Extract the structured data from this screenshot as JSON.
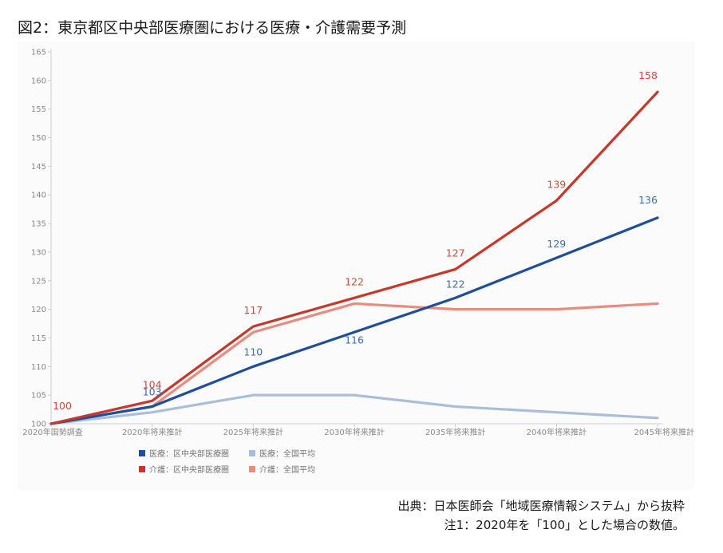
{
  "title": "図2：東京都区中央部医療圏における医療・介護需要予測",
  "source": {
    "line1": "出典：日本医師会「地域医療情報システム」から抜粋",
    "line2": "注1：2020年を「100」とした場合の数値。"
  },
  "chart_data": {
    "type": "line",
    "categories": [
      "2020年国勢調査",
      "2020年将来推計",
      "2025年将来推計",
      "2030年将来推計",
      "2035年将来推計",
      "2040年将来推計",
      "2045年将来推計"
    ],
    "ylim": [
      100,
      165
    ],
    "yticks": [
      100,
      105,
      110,
      115,
      120,
      125,
      130,
      135,
      140,
      145,
      150,
      155,
      160,
      165
    ],
    "grid": false,
    "legend_position": "bottom",
    "series": [
      {
        "name": "医療：区中央部医療圏",
        "color": "#1f4f9a",
        "values": [
          100,
          103,
          110,
          116,
          122,
          129,
          136
        ],
        "labels": [
          null,
          "103",
          "110",
          "116",
          "122",
          "129",
          "136"
        ],
        "label_color": "#3a6db5"
      },
      {
        "name": "医療：全国平均",
        "color": "#a9bfd9",
        "values": [
          100,
          102,
          105,
          105,
          103,
          102,
          101
        ],
        "labels": [
          null,
          null,
          null,
          null,
          null,
          null,
          null
        ],
        "label_color": "#a9bfd9"
      },
      {
        "name": "介護：区中央部医療圏",
        "color": "#c9362a",
        "values": [
          100,
          104,
          117,
          122,
          127,
          139,
          158
        ],
        "labels": [
          "100",
          "104",
          "117",
          "122",
          "127",
          "139",
          "158"
        ],
        "label_color": "#d2473a"
      },
      {
        "name": "介護：全国平均",
        "color": "#eb8a7e",
        "values": [
          100,
          103,
          116,
          121,
          120,
          120,
          121
        ],
        "labels": [
          null,
          null,
          null,
          null,
          null,
          null,
          null
        ],
        "label_color": "#eb8a7e"
      }
    ]
  }
}
